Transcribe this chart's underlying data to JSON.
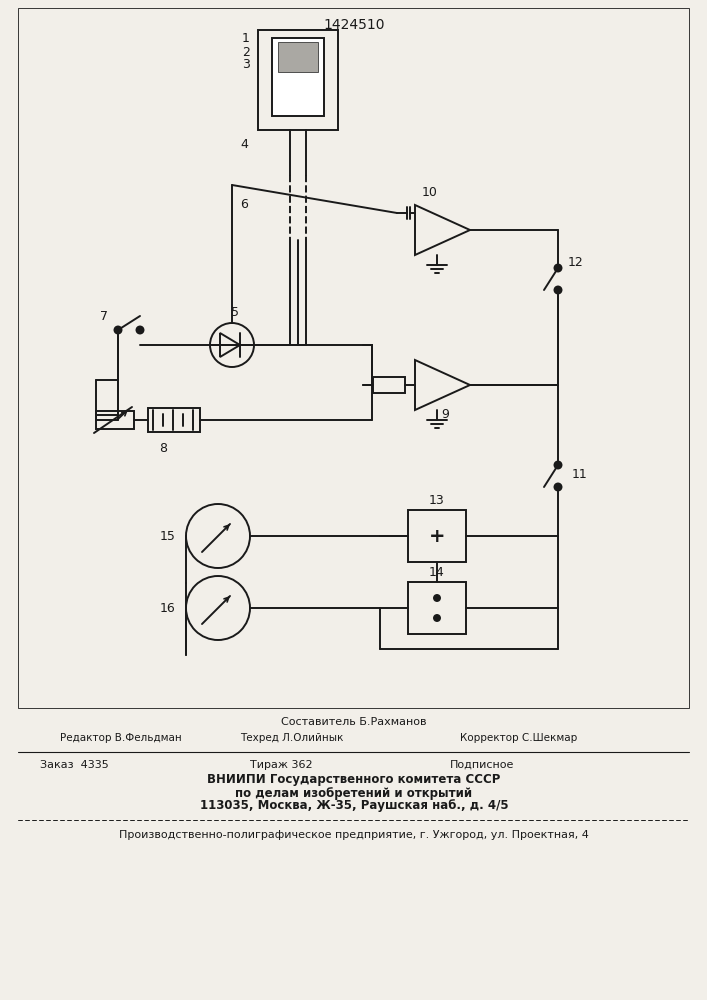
{
  "title": "1424510",
  "bg_color": "#f2efe9",
  "line_color": "#1a1a1a",
  "footer_compose": "Составитель Б.Рахманов",
  "footer_editor": "Редактор В.Фельдман",
  "footer_tech": "Техред Л.Олийнык",
  "footer_correct": "Корректор С.Шекмар",
  "footer_order": "Заказ  4335",
  "footer_tirazh": "Тираж 362",
  "footer_podp": "Подписное",
  "footer_vniip1": "ВНИИПИ Государственного комитета СССР",
  "footer_vniip2": "по делам изобретений и открытий",
  "footer_vniip3": "113035, Москва, Ж-35, Раушская наб., д. 4/5",
  "footer_prod": "Производственно-полиграфическое предприятие, г. Ужгород, ул. Проектная, 4"
}
